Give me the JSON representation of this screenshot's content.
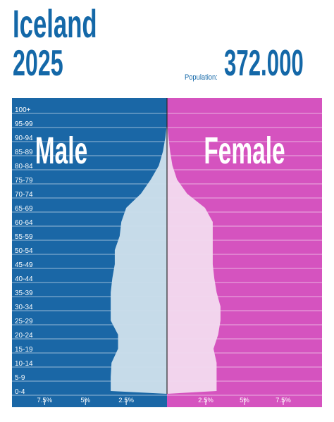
{
  "header": {
    "country": "Iceland",
    "year": "2025",
    "population_label": "Population:",
    "population_value": "372.000"
  },
  "colors": {
    "male_bg": "#1a67a6",
    "female_bg": "#d553bf",
    "male_pyramid": "#ccdfeb",
    "female_pyramid": "#f3d9ee",
    "title": "#1468a8"
  },
  "chart_data": {
    "type": "bar",
    "orientation": "horizontal-pyramid",
    "unit": "%",
    "categories": [
      "0-4",
      "5-9",
      "10-14",
      "15-19",
      "20-24",
      "25-29",
      "30-34",
      "35-39",
      "40-44",
      "45-49",
      "50-54",
      "55-59",
      "60-64",
      "65-69",
      "70-74",
      "75-79",
      "80-84",
      "85-89",
      "90-94",
      "95-99",
      "100+"
    ],
    "series": [
      {
        "name": "Male",
        "values": [
          3.45,
          3.45,
          3.4,
          3.0,
          3.0,
          3.45,
          3.45,
          3.45,
          3.35,
          3.2,
          3.2,
          2.9,
          2.8,
          2.5,
          1.6,
          1.0,
          0.5,
          0.25,
          0.1,
          0.0,
          0.0
        ]
      },
      {
        "name": "Female",
        "values": [
          3.2,
          3.2,
          3.2,
          3.0,
          3.3,
          3.45,
          3.45,
          3.2,
          3.05,
          2.95,
          2.95,
          2.95,
          2.95,
          2.45,
          1.3,
          0.65,
          0.35,
          0.2,
          0.1,
          0.0,
          0.0
        ]
      }
    ],
    "xlim": [
      -9.5,
      10.0
    ],
    "x_ticks": [
      {
        "value": -7.5,
        "label": "7.5%"
      },
      {
        "value": -5,
        "label": "5%"
      },
      {
        "value": -2.5,
        "label": "2.5%"
      },
      {
        "value": 2.5,
        "label": "2.5%"
      },
      {
        "value": 5,
        "label": "5%"
      },
      {
        "value": 7.5,
        "label": "7.5%"
      }
    ],
    "panel_labels": {
      "male": "Male",
      "female": "Female"
    },
    "grid": true
  }
}
